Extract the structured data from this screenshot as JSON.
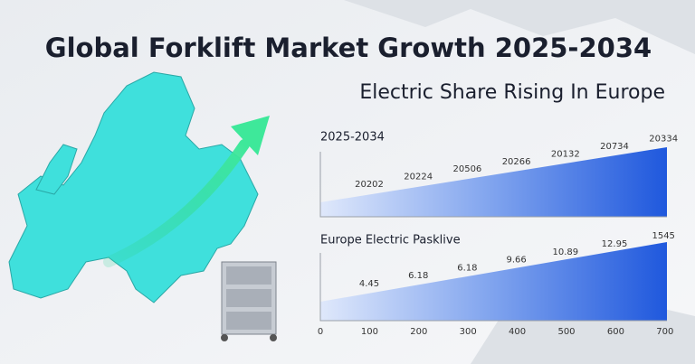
{
  "header": {
    "title": "Global Forklift Market Growth 2025-2034",
    "subtitle": "Electric Share Rising In Europe"
  },
  "panels": [
    {
      "title": "2025-2034",
      "labels": [
        "20202",
        "20224",
        "20506",
        "20266",
        "20132",
        "20734",
        "20334"
      ]
    },
    {
      "title": "Europe Electric Pasklive",
      "labels": [
        "4.45",
        "6.18",
        "6.18",
        "9.66",
        "10.89",
        "12.95",
        "1545"
      ],
      "axis_labels": [
        "0",
        "100",
        "200",
        "300",
        "400",
        "500",
        "600",
        "700"
      ]
    }
  ]
}
